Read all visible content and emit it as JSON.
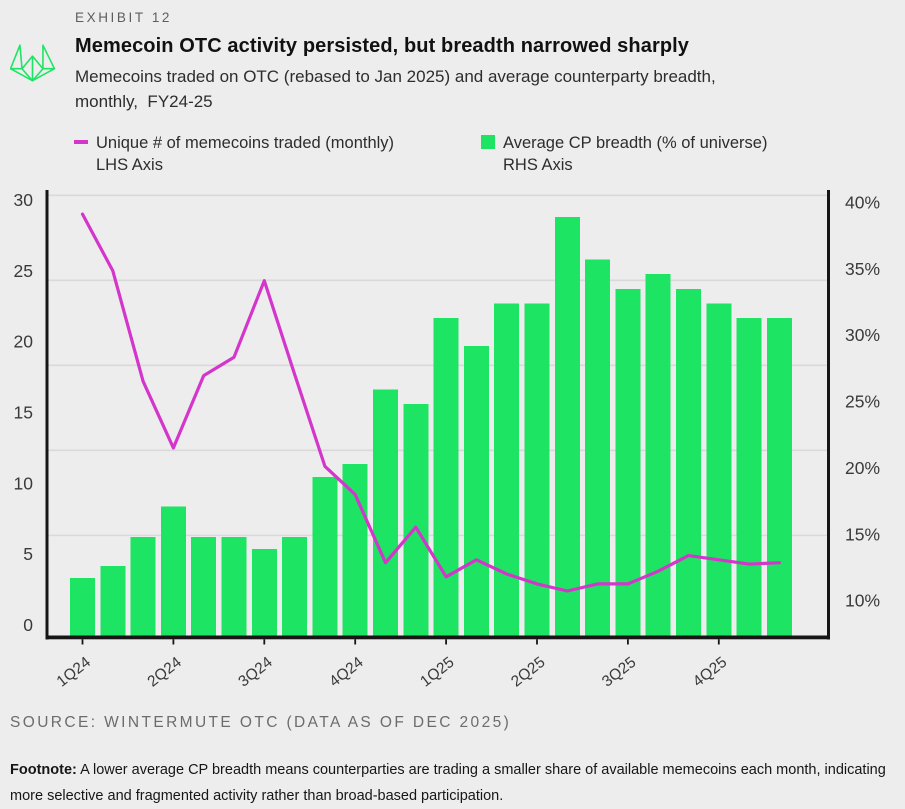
{
  "header": {
    "exhibit_label": "EXHIBIT 12",
    "title": "Memecoin OTC activity persisted, but breadth narrowed sharply",
    "subtitle_line1": "Memecoins traded on OTC (rebased to Jan 2025) and average counterparty breadth,",
    "subtitle_line2": "monthly,  FY24-25"
  },
  "legend": {
    "line_series": {
      "label": "Unique # of memecoins traded (monthly)",
      "axis_note": "LHS Axis",
      "color": "#d435cb",
      "marker": "dash"
    },
    "bar_series": {
      "label": "Average CP breadth (% of universe)",
      "axis_note": "RHS Axis",
      "color": "#1de463",
      "marker": "square"
    }
  },
  "footer": {
    "source": "SOURCE: WINTERMUTE OTC (DATA AS OF DEC 2025)",
    "footnote_label": "Footnote:",
    "footnote_text": " A lower average CP breadth means counterparties are trading a smaller share of available memecoins each month, indicating more selective and fragmented activity rather than broad-based participation."
  },
  "logo": {
    "name": "wintermute-logo",
    "color": "#1de463"
  },
  "colors": {
    "background": "#ededed",
    "gridline": "#d9d9d9",
    "spine": "#161616",
    "axis_text": "#3a3a3a",
    "bar_green": "#1de463",
    "line_magenta": "#d435cb"
  },
  "chart_data": {
    "type": "bar+line",
    "title": "Memecoin OTC activity persisted, but breadth narrowed sharply",
    "x_unit": "month",
    "n_points": 24,
    "x_tick_labels": [
      "1Q24",
      "2Q24",
      "3Q24",
      "4Q24",
      "1Q25",
      "2Q25",
      "3Q25",
      "4Q25"
    ],
    "x_tick_month_index": [
      0,
      3,
      6,
      9,
      12,
      15,
      18,
      21
    ],
    "left_axis": {
      "side": "LHS",
      "min": 0,
      "max": 30,
      "tick_labels": [
        "0",
        "5",
        "10",
        "15",
        "20",
        "25",
        "30"
      ],
      "tick_values": [
        0,
        5,
        10,
        15,
        20,
        25,
        30
      ]
    },
    "right_axis": {
      "side": "RHS",
      "min": 7.9,
      "max": 40.2,
      "tick_labels": [
        "10%",
        "15%",
        "20%",
        "25%",
        "30%",
        "35%",
        "40%"
      ],
      "tick_values": [
        10,
        15,
        20,
        25,
        30,
        35,
        40
      ]
    },
    "grid": "horizontal gridlines at left-axis values 6,12,18,24,30",
    "gridline_left_values": [
      6,
      12,
      18,
      24,
      30
    ],
    "legend_position": "top",
    "series": [
      {
        "name": "Unique # of memecoins traded (monthly)",
        "type": "line",
        "axis": "LHS",
        "color": "#d435cb",
        "values": [
          29.0,
          25.0,
          17.2,
          12.5,
          17.6,
          18.9,
          24.3,
          17.7,
          11.2,
          9.2,
          4.4,
          6.9,
          3.4,
          4.6,
          3.6,
          2.9,
          2.4,
          2.9,
          2.9,
          3.8,
          4.9,
          4.6,
          4.3,
          4.4
        ]
      },
      {
        "name": "Average CP breadth (% of universe)",
        "type": "bar",
        "axis": "RHS",
        "color": "#1de463",
        "values": [
          11.7,
          12.6,
          14.8,
          17.1,
          14.8,
          14.8,
          13.9,
          14.8,
          19.3,
          20.3,
          25.9,
          24.8,
          31.3,
          29.2,
          32.4,
          32.4,
          38.9,
          35.7,
          33.5,
          34.6,
          33.5,
          32.4,
          31.3,
          31.3
        ]
      }
    ]
  }
}
